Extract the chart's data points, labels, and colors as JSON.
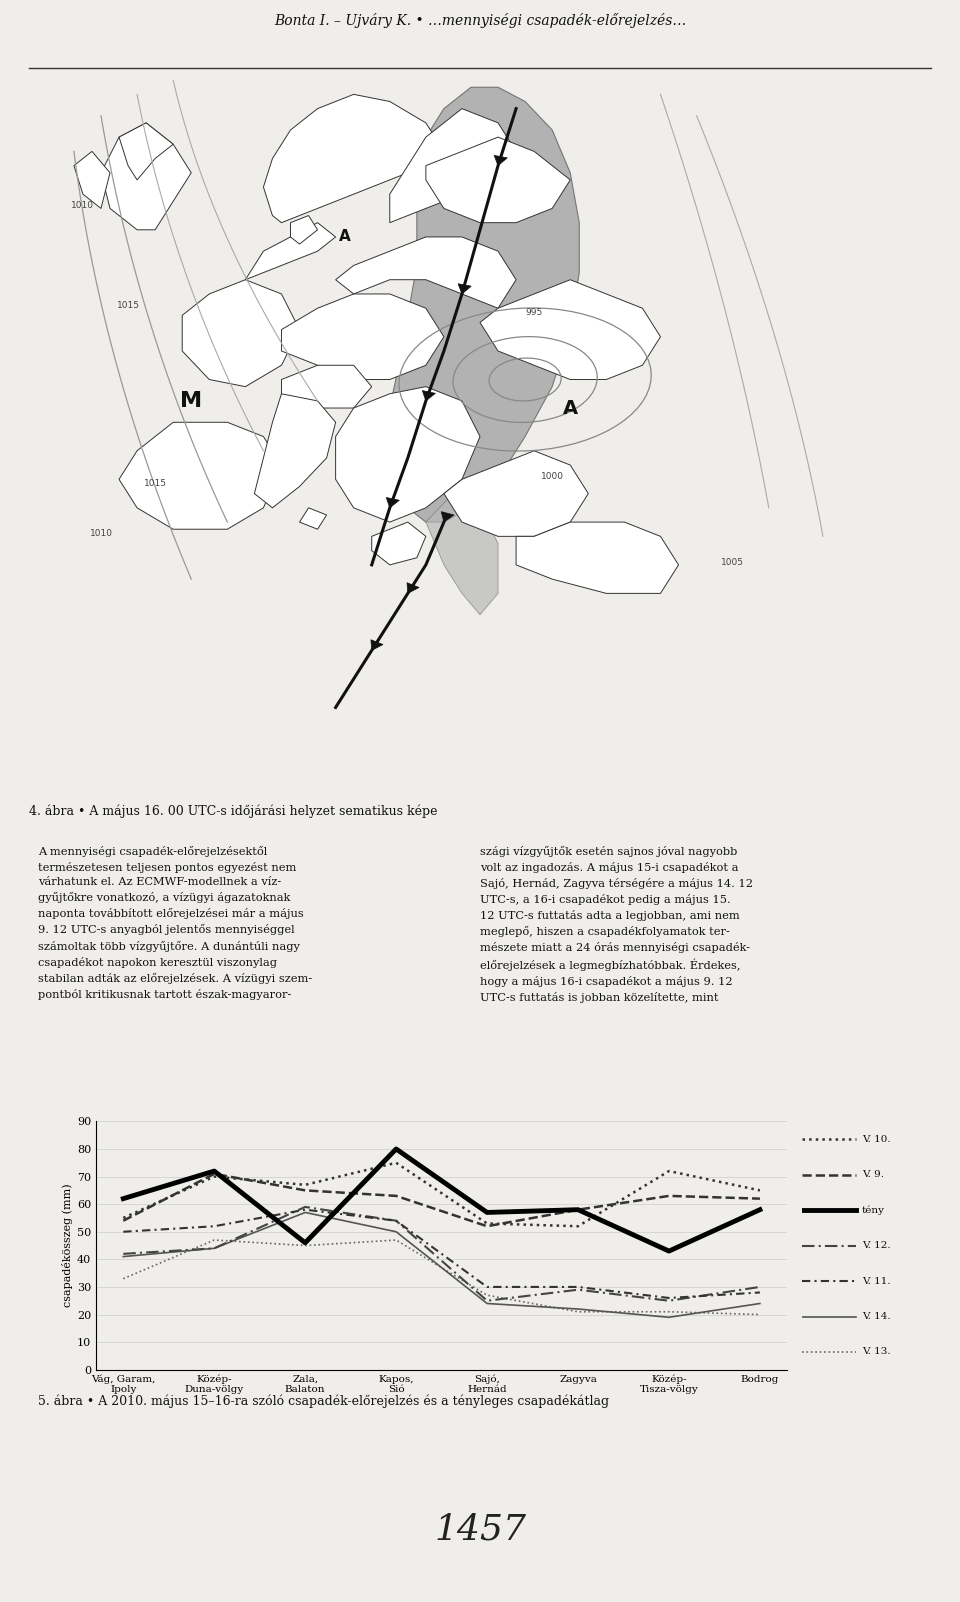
{
  "categories": [
    "Vág, Garam,\nIpoly",
    "Közép-\nDuna-völgy",
    "Zala,\nBalaton",
    "Kapos,\nSió",
    "Sajó,\nHernád",
    "Zagyva",
    "Közép-\nTisza-völgy",
    "Bodrog"
  ],
  "ylim": [
    0,
    90
  ],
  "yticks": [
    0,
    10,
    20,
    30,
    40,
    50,
    60,
    70,
    80,
    90
  ],
  "ylabel": "csapadékösszeg (mm)",
  "series_order": [
    "V. 13.",
    "V. 14.",
    "V. 12.",
    "V. 11.",
    "V. 10.",
    "V. 9.",
    "tény"
  ],
  "series": {
    "V. 10.": {
      "values": [
        55,
        70,
        67,
        75,
        53,
        52,
        72,
        65
      ],
      "linestyle": "dotted",
      "linewidth": 1.8,
      "color": "#333333",
      "dashes": null
    },
    "V. 9.": {
      "values": [
        54,
        71,
        65,
        63,
        52,
        58,
        63,
        62
      ],
      "linestyle": "dashed",
      "linewidth": 1.8,
      "color": "#333333",
      "dashes": null
    },
    "tény": {
      "values": [
        62,
        72,
        46,
        80,
        57,
        58,
        43,
        58
      ],
      "linestyle": "solid",
      "linewidth": 3.5,
      "color": "#000000",
      "dashes": null
    },
    "V. 12.": {
      "values": [
        42,
        44,
        59,
        54,
        25,
        29,
        25,
        30
      ],
      "linestyle": "custom",
      "linewidth": 1.5,
      "color": "#444444",
      "dashes": [
        6,
        2,
        1,
        2
      ]
    },
    "V. 11.": {
      "values": [
        50,
        52,
        58,
        54,
        30,
        30,
        26,
        28
      ],
      "linestyle": "custom",
      "linewidth": 1.5,
      "color": "#333333",
      "dashes": [
        4,
        2,
        1,
        2
      ]
    },
    "V. 14.": {
      "values": [
        41,
        44,
        57,
        50,
        24,
        22,
        19,
        24
      ],
      "linestyle": "solid",
      "linewidth": 1.2,
      "color": "#555555",
      "dashes": null
    },
    "V. 13.": {
      "values": [
        33,
        47,
        45,
        47,
        27,
        21,
        21,
        20
      ],
      "linestyle": "dotted",
      "linewidth": 1.2,
      "color": "#666666",
      "dashes": null
    }
  },
  "figure_width": 9.6,
  "figure_height": 16.02,
  "title_top": "Bonta I. – Ujváry K. • …mennyiségi csapadék-előrejelzés…",
  "map_caption": "4. ábra • A május 16. 00 UTC-s időjárási helyzet sematikus képe",
  "chart_caption": "5. ábra • A 2010. május 15–16-ra szóló csapadék-előrejelzés és a tényleges csapadékátlag",
  "page_number": "1457",
  "background_color": "#f0eeea"
}
